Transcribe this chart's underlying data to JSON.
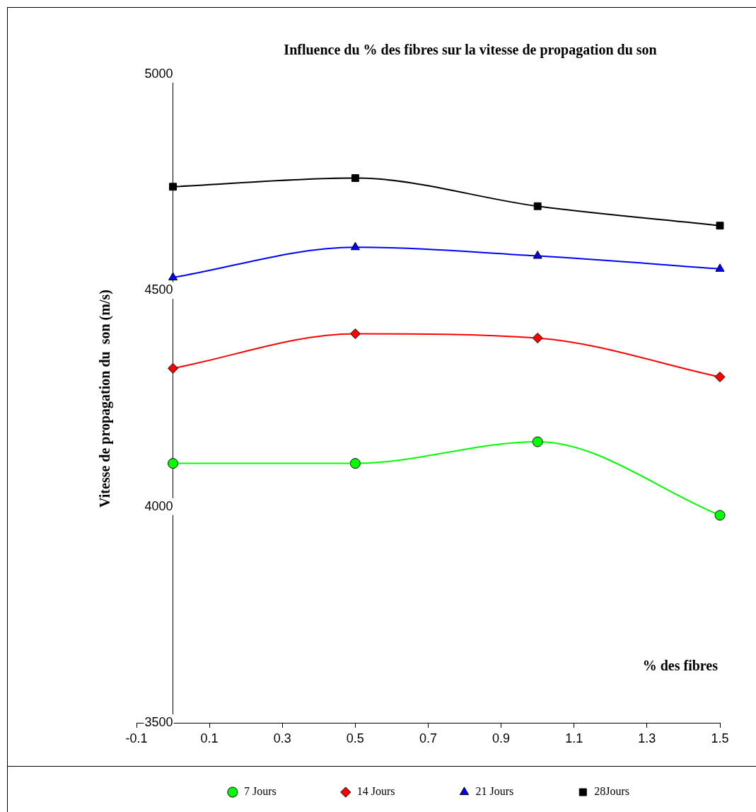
{
  "chart_data": {
    "type": "line",
    "title": "Influence du % des fibres sur la vitesse de propagation du son",
    "xlabel": "% des fibres",
    "ylabel": "Vitesse de propagation du  son (m/s)",
    "x": [
      0,
      0.5,
      1,
      1.5
    ],
    "xlim": [
      -0.1,
      1.5
    ],
    "xticks": [
      -0.1,
      0.1,
      0.3,
      0.5,
      0.7,
      0.9,
      1.1,
      1.3,
      1.5
    ],
    "ylim": [
      3500,
      5000
    ],
    "yticks": [
      3500,
      4000,
      4500,
      5000
    ],
    "grid": false,
    "legend": "bottom",
    "line_style": "solid",
    "series": [
      {
        "name": "7 Jours",
        "color": "#00ff00",
        "marker": "circle",
        "values": [
          4100,
          4100,
          4150,
          3980
        ]
      },
      {
        "name": "14 Jours",
        "color": "#ff0000",
        "marker": "diamond",
        "values": [
          4320,
          4400,
          4390,
          4300
        ]
      },
      {
        "name": "21 Jours",
        "color": "#0000ff",
        "marker": "triangle",
        "values": [
          4530,
          4600,
          4580,
          4550
        ]
      },
      {
        "name": "28Jours",
        "color": "#000000",
        "marker": "square",
        "values": [
          4740,
          4760,
          4695,
          4650
        ]
      }
    ]
  }
}
